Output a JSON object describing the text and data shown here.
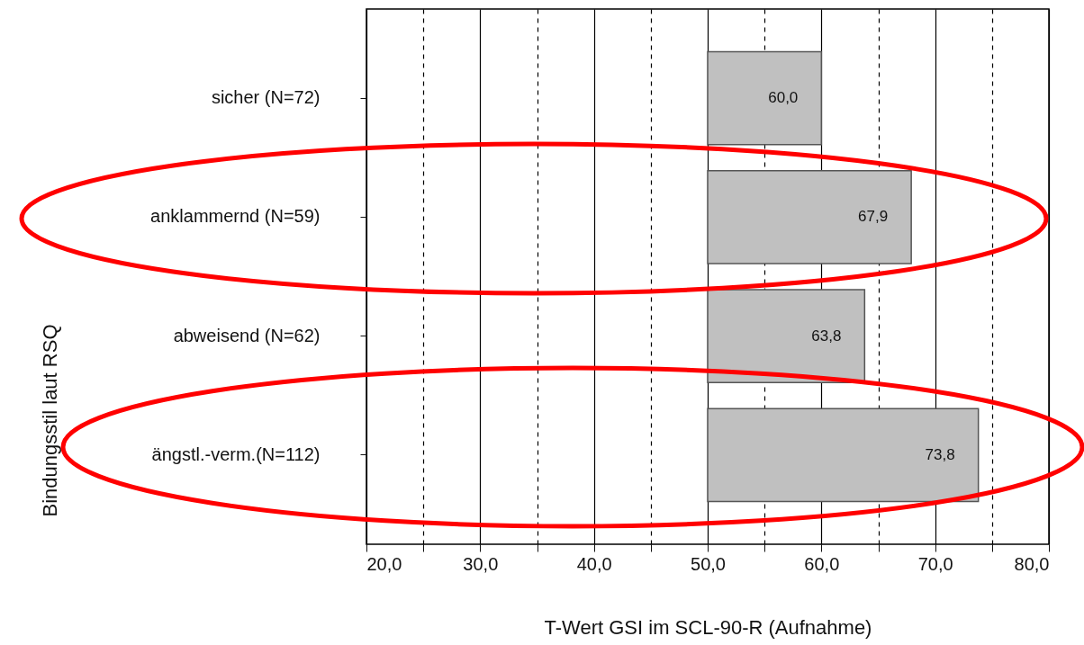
{
  "chart_data": {
    "type": "bar",
    "orientation": "horizontal",
    "xlabel": "T-Wert GSI im SCL-90-R (Aufnahme)",
    "ylabel": "Bindungsstil laut RSQ",
    "categories": [
      "sicher (N=72)",
      "anklammernd (N=59)",
      "abweisend (N=62)",
      "ängstl.-verm.(N=112)"
    ],
    "base": [
      50,
      50,
      50,
      50
    ],
    "values": [
      10.0,
      17.9,
      13.8,
      23.8
    ],
    "value_labels": [
      "60,0",
      "67,9",
      "63,8",
      "73,8"
    ],
    "color": "#c0c0c0",
    "xlim": [
      20,
      80
    ],
    "xticks": [
      {
        "value": 20,
        "label": "20,0"
      },
      {
        "value": 25,
        "label": null
      },
      {
        "value": 30,
        "label": "30,0"
      },
      {
        "value": 35,
        "label": null
      },
      {
        "value": 40,
        "label": "40,0"
      },
      {
        "value": 45,
        "label": null
      },
      {
        "value": 50,
        "label": "50,0"
      },
      {
        "value": 55,
        "label": null
      },
      {
        "value": 60,
        "label": "60,0"
      },
      {
        "value": 65,
        "label": null
      },
      {
        "value": 70,
        "label": "70,0"
      },
      {
        "value": 75,
        "label": null
      },
      {
        "value": 80,
        "label": "80,0"
      }
    ],
    "grid": "x"
  }
}
